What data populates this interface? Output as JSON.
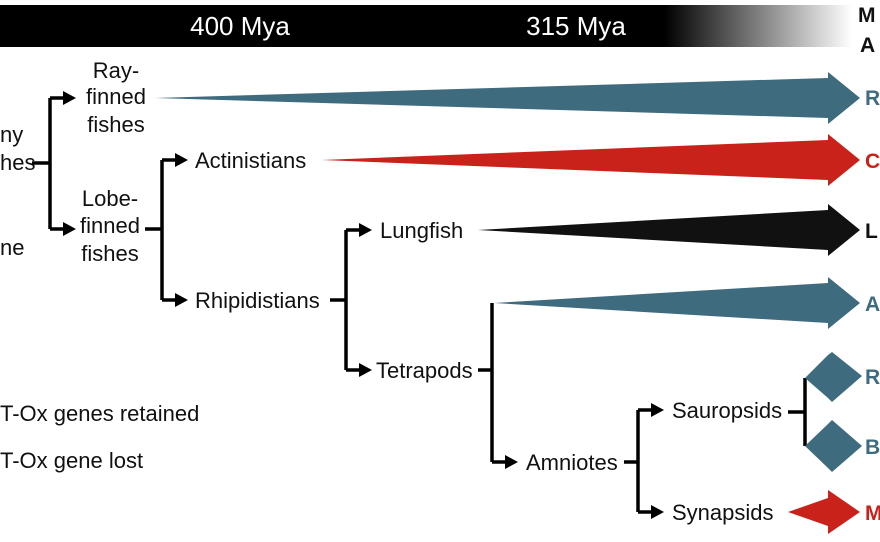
{
  "colors": {
    "teal": "#3f6b7f",
    "red": "#c8221a",
    "black": "#111111",
    "bar": "#000000",
    "bar_text": "#ffffff"
  },
  "timeline": {
    "mark_1": "400 Mya",
    "mark_2": "315 Mya"
  },
  "right_header": {
    "line_1": "M",
    "line_2": "A"
  },
  "left_fragments": {
    "bony_1": "ny",
    "bony_2": "hes",
    "fragment_3": "ne"
  },
  "legend": {
    "retained": "T-Ox genes retained",
    "lost": "T-Ox gene lost"
  },
  "taxa": {
    "ray_1": "Ray-",
    "ray_2": "finned",
    "ray_3": "fishes",
    "lobe_1": "Lobe-",
    "lobe_2": "finned",
    "lobe_3": "fishes",
    "actinistians": "Actinistians",
    "rhipidistians": "Rhipidistians",
    "lungfish": "Lungfish",
    "tetrapods": "Tetrapods",
    "amniotes": "Amniotes",
    "sauropsids": "Sauropsids",
    "synapsids": "Synapsids"
  },
  "terminal_letters": [
    {
      "letter": "R",
      "color": "teal"
    },
    {
      "letter": "C",
      "color": "red"
    },
    {
      "letter": "L",
      "color": "black"
    },
    {
      "letter": "A",
      "color": "teal"
    },
    {
      "letter": "R",
      "color": "teal"
    },
    {
      "letter": "B",
      "color": "teal"
    },
    {
      "letter": "M",
      "color": "red"
    }
  ]
}
